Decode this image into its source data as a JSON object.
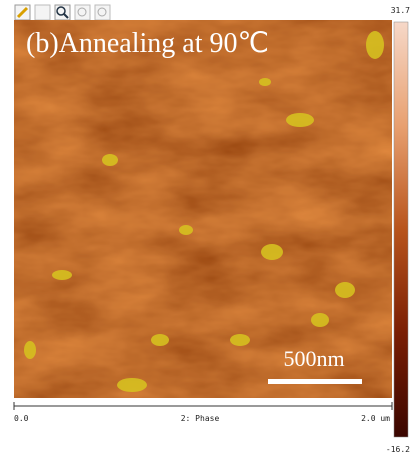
{
  "image": {
    "title": "(b)Annealing at 90℃",
    "scale_bar": "500nm"
  },
  "axis": {
    "start": "0.0",
    "channel": "2: Phase",
    "end": "2.0 um"
  },
  "colorbar": {
    "max": "31.7",
    "min": "-16.2"
  }
}
